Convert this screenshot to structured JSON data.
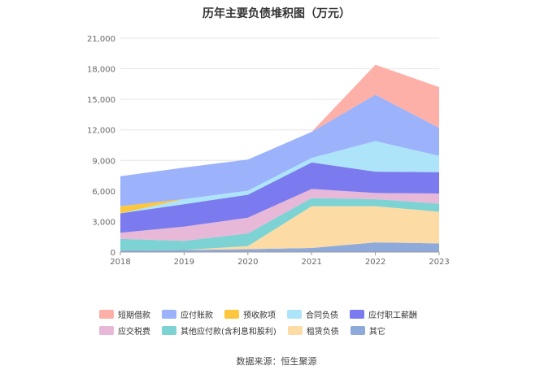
{
  "chart_data": {
    "type": "area",
    "stacked": true,
    "title": "历年主要负债堆积图（万元）",
    "categories": [
      "2018",
      "2019",
      "2020",
      "2021",
      "2022",
      "2023"
    ],
    "ylim": [
      0,
      21000
    ],
    "yticks": [
      "0",
      "3,000",
      "6,000",
      "9,000",
      "12,000",
      "15,000",
      "18,000",
      "21,000"
    ],
    "grid": true,
    "legend_position": "bottom",
    "series": [
      {
        "name": "其它",
        "color": "#8eaadb",
        "values": [
          150,
          200,
          280,
          400,
          950,
          850
        ]
      },
      {
        "name": "租赁负债",
        "color": "#fcdba5",
        "values": [
          0,
          0,
          300,
          4100,
          3550,
          3100
        ]
      },
      {
        "name": "其他应付款(含利息和股利)",
        "color": "#7dd3d3",
        "values": [
          1150,
          900,
          1250,
          800,
          700,
          800
        ]
      },
      {
        "name": "应交税费",
        "color": "#e7b8d8",
        "values": [
          600,
          1400,
          1550,
          900,
          600,
          1000
        ]
      },
      {
        "name": "应付职工薪酬",
        "color": "#7b7bef",
        "values": [
          1900,
          2200,
          2250,
          2600,
          2100,
          2100
        ]
      },
      {
        "name": "合同负债",
        "color": "#ade4fa",
        "values": [
          0,
          500,
          400,
          450,
          3000,
          1600
        ]
      },
      {
        "name": "预收款项",
        "color": "#fcc73d",
        "values": [
          700,
          0,
          0,
          0,
          0,
          0
        ]
      },
      {
        "name": "应付账款",
        "color": "#9cb2fb",
        "values": [
          2950,
          3100,
          3050,
          2550,
          4550,
          2750
        ]
      },
      {
        "name": "短期借款",
        "color": "#fdb0a8",
        "values": [
          0,
          0,
          0,
          0,
          2950,
          4000
        ]
      }
    ]
  },
  "legend": [
    {
      "name": "短期借款",
      "color": "#fdb0a8"
    },
    {
      "name": "应付账款",
      "color": "#9cb2fb"
    },
    {
      "name": "预收款项",
      "color": "#fcc73d"
    },
    {
      "name": "合同负债",
      "color": "#ade4fa"
    },
    {
      "name": "应付职工薪酬",
      "color": "#7b7bef"
    },
    {
      "name": "应交税费",
      "color": "#e7b8d8"
    },
    {
      "name": "其他应付款(含利息和股利)",
      "color": "#7dd3d3"
    },
    {
      "name": "租赁负债",
      "color": "#fcdba5"
    },
    {
      "name": "其它",
      "color": "#8eaadb"
    }
  ],
  "source": "数据来源：恒生聚源"
}
